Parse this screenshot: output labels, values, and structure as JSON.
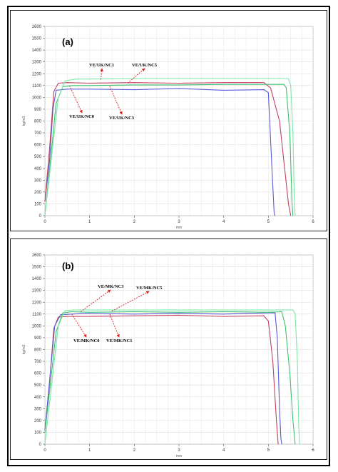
{
  "chart_data": [
    {
      "type": "line",
      "panel_label": "(a)",
      "xlabel": "mm",
      "ylabel": "kg/m3",
      "xlim": [
        0,
        6
      ],
      "ylim": [
        0,
        1600
      ],
      "x_ticks": [
        "0",
        "1",
        "2",
        "3",
        "4",
        "5",
        "6"
      ],
      "y_ticks": [
        "0",
        "100",
        "200",
        "300",
        "400",
        "500",
        "600",
        "700",
        "800",
        "900",
        "1000",
        "1100",
        "1200",
        "1300",
        "1400",
        "1500",
        "1600"
      ],
      "grid": true,
      "annotations": [
        {
          "text": "VE/UK/NC1",
          "target": [
            1.25,
            1150
          ]
        },
        {
          "text": "VE/UK/NC5",
          "target": [
            1.85,
            1120
          ]
        },
        {
          "text": "VE/UK/NC0",
          "target": [
            0.55,
            1100
          ]
        },
        {
          "text": "VE/UK/NC3",
          "target": [
            1.45,
            1095
          ]
        }
      ],
      "series": [
        {
          "color": "#5b5bd6",
          "x": [
            0,
            0.1,
            0.18,
            0.25,
            0.5,
            1,
            2,
            3,
            4,
            4.9,
            5.0,
            5.08,
            5.13,
            5.15
          ],
          "y": [
            120,
            450,
            900,
            1060,
            1070,
            1070,
            1065,
            1075,
            1060,
            1065,
            1040,
            400,
            20,
            0
          ]
        },
        {
          "color": "#c0405c",
          "x": [
            0,
            0.1,
            0.2,
            0.3,
            0.5,
            1,
            2,
            3,
            4,
            4.9,
            5.05,
            5.25,
            5.35,
            5.45,
            5.5
          ],
          "y": [
            120,
            550,
            1050,
            1120,
            1125,
            1120,
            1125,
            1120,
            1125,
            1125,
            1080,
            800,
            450,
            100,
            0
          ]
        },
        {
          "color": "#3fbf6f",
          "x": [
            0,
            0.12,
            0.25,
            0.4,
            0.6,
            1,
            2,
            3,
            4,
            5,
            5.35,
            5.4,
            5.48,
            5.53,
            5.55
          ],
          "y": [
            0,
            450,
            950,
            1090,
            1100,
            1100,
            1105,
            1105,
            1110,
            1110,
            1110,
            1080,
            700,
            100,
            0
          ]
        },
        {
          "color": "#7ee6a8",
          "x": [
            0,
            0.15,
            0.3,
            0.45,
            0.7,
            1,
            2,
            3,
            4,
            5,
            5.45,
            5.5,
            5.55,
            5.58,
            5.6
          ],
          "y": [
            0,
            500,
            1000,
            1140,
            1155,
            1155,
            1160,
            1160,
            1160,
            1160,
            1160,
            1100,
            700,
            150,
            0
          ]
        }
      ]
    },
    {
      "type": "line",
      "panel_label": "(b)",
      "xlabel": "mm",
      "ylabel": "kg/m3",
      "xlim": [
        0,
        6
      ],
      "ylim": [
        0,
        1600
      ],
      "x_ticks": [
        "0",
        "1",
        "2",
        "3",
        "4",
        "5",
        "6"
      ],
      "y_ticks": [
        "0",
        "100",
        "200",
        "300",
        "400",
        "500",
        "600",
        "700",
        "800",
        "900",
        "1000",
        "1100",
        "1200",
        "1300",
        "1400",
        "1500",
        "1600"
      ],
      "grid": true,
      "annotations": [
        {
          "text": "VE/MK/NC3",
          "target": [
            0.8,
            1120
          ]
        },
        {
          "text": "VE/MK/NC5",
          "target": [
            1.5,
            1125
          ]
        },
        {
          "text": "VE/MK/NC0",
          "target": [
            0.6,
            1100
          ]
        },
        {
          "text": "VE/MK/NC1",
          "target": [
            1.45,
            1100
          ]
        }
      ],
      "series": [
        {
          "color": "#c0405c",
          "x": [
            0,
            0.1,
            0.2,
            0.3,
            0.5,
            1,
            2,
            3,
            4,
            4.9,
            5.0,
            5.1,
            5.18,
            5.22
          ],
          "y": [
            120,
            500,
            980,
            1075,
            1080,
            1080,
            1085,
            1090,
            1080,
            1085,
            1040,
            700,
            200,
            0
          ]
        },
        {
          "color": "#5b5bd6",
          "x": [
            0,
            0.12,
            0.22,
            0.35,
            0.6,
            1,
            2,
            3,
            4,
            5,
            5.15,
            5.2,
            5.25,
            5.28,
            5.3
          ],
          "y": [
            120,
            600,
            1000,
            1095,
            1100,
            1105,
            1100,
            1105,
            1100,
            1110,
            1110,
            900,
            300,
            50,
            0
          ]
        },
        {
          "color": "#3fbf6f",
          "x": [
            0,
            0.12,
            0.25,
            0.4,
            0.6,
            1,
            2,
            3,
            4,
            5,
            5.3,
            5.38,
            5.48,
            5.55,
            5.6
          ],
          "y": [
            100,
            500,
            950,
            1110,
            1120,
            1115,
            1120,
            1115,
            1120,
            1115,
            1120,
            1000,
            600,
            200,
            0
          ]
        },
        {
          "color": "#7ee6a8",
          "x": [
            0,
            0.15,
            0.3,
            0.45,
            0.7,
            1,
            2,
            3,
            4,
            5,
            5.55,
            5.6,
            5.65,
            5.68,
            5.7
          ],
          "y": [
            0,
            500,
            1000,
            1130,
            1135,
            1135,
            1135,
            1135,
            1135,
            1135,
            1135,
            1100,
            700,
            150,
            0
          ]
        }
      ]
    }
  ]
}
